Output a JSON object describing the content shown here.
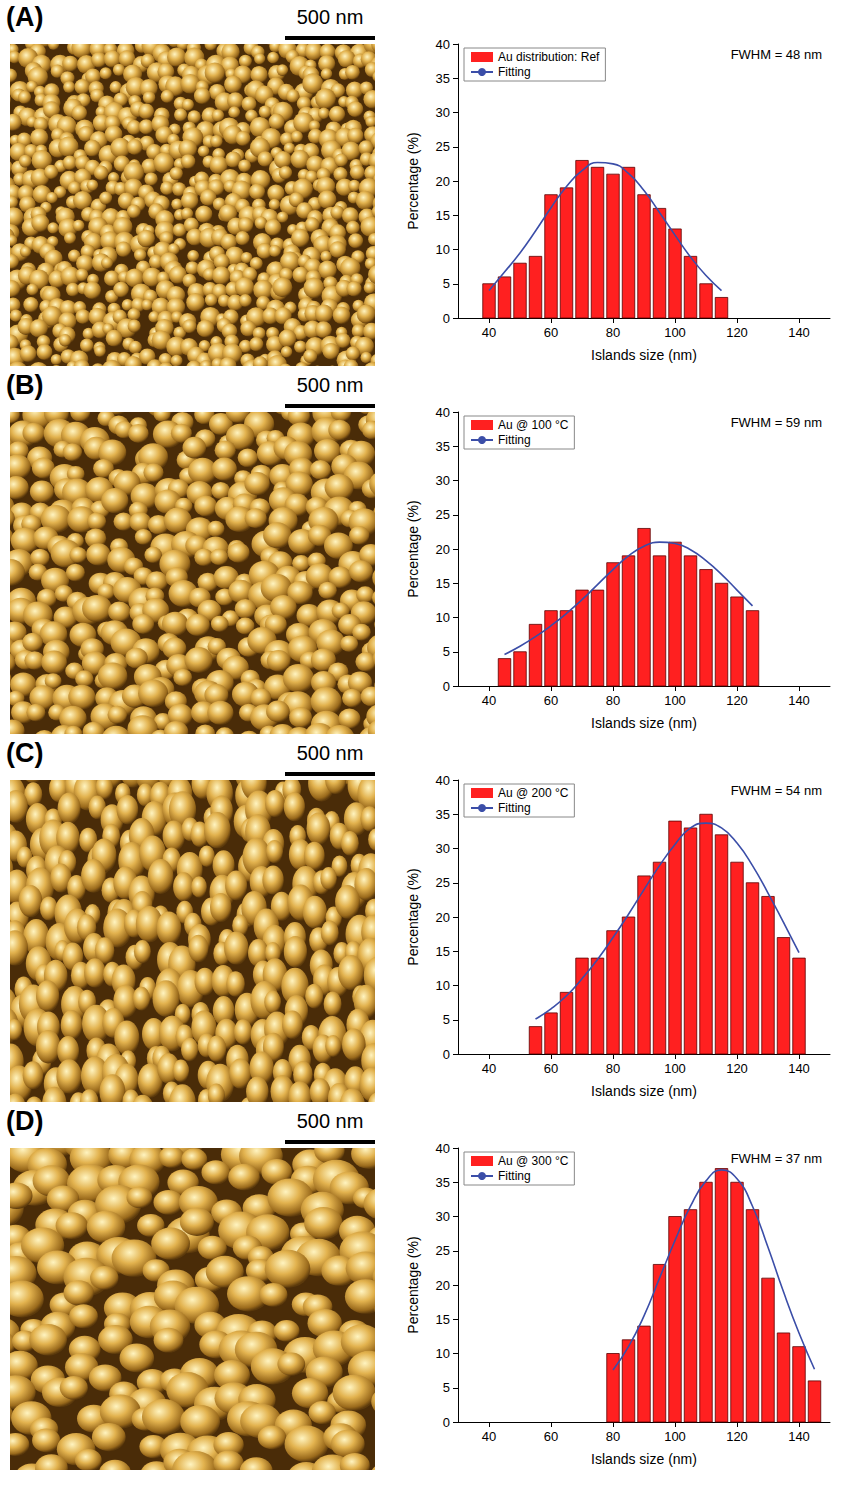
{
  "chart_data": [
    {
      "type": "histogram",
      "panel_label": "(A)",
      "scale_bar": "500 nm",
      "annotation": "FWHM = 48 nm",
      "x_label": "Islands size (nm)",
      "y_label": "Percentage (%)",
      "bins": [
        37.5,
        42.5,
        47.5,
        52.5,
        57.5,
        62.5,
        67.5,
        72.5,
        77.5,
        82.5,
        87.5,
        92.5,
        97.5,
        102.5,
        107.5,
        112.5,
        117.5
      ],
      "series": [
        {
          "name": "Au distribution: Ref",
          "type": "bar",
          "color": "#ff2020",
          "values": [
            5,
            6,
            8,
            9,
            18,
            19,
            23,
            22,
            21,
            22,
            18,
            16,
            13,
            9,
            5,
            3
          ]
        },
        {
          "name": "Fitting",
          "type": "line",
          "color": "#3b4ea8",
          "x": [
            40,
            45,
            50,
            55,
            60,
            65,
            70,
            75,
            80,
            85,
            90,
            95,
            100,
            105,
            110,
            115
          ],
          "values": [
            4.0,
            6.7,
            9.5,
            12.7,
            16.1,
            19.2,
            21.5,
            22.7,
            22.5,
            21.1,
            18.6,
            15.4,
            12.1,
            8.9,
            6.2,
            4.0
          ]
        }
      ],
      "xlim": [
        30,
        150
      ],
      "xticks": [
        40,
        60,
        80,
        100,
        120,
        140
      ],
      "ylim": [
        0,
        40
      ],
      "yticks": [
        0,
        5,
        10,
        15,
        20,
        25,
        30,
        35,
        40
      ],
      "legend": "upper left",
      "grid": false
    },
    {
      "type": "histogram",
      "panel_label": "(B)",
      "scale_bar": "500 nm",
      "annotation": "FWHM = 59 nm",
      "x_label": "Islands size (nm)",
      "y_label": "Percentage (%)",
      "bins": [
        42.5,
        47.5,
        52.5,
        57.5,
        62.5,
        67.5,
        72.5,
        77.5,
        82.5,
        87.5,
        92.5,
        97.5,
        102.5,
        107.5,
        112.5,
        117.5,
        122.5,
        127.5
      ],
      "series": [
        {
          "name": "Au @ 100 °C",
          "type": "bar",
          "color": "#ff2020",
          "values": [
            4,
            5,
            9,
            11,
            11,
            14,
            14,
            18,
            19,
            23,
            19,
            21,
            19,
            17,
            15,
            13,
            11
          ]
        },
        {
          "name": "Fitting",
          "type": "line",
          "color": "#3b4ea8",
          "x": [
            45,
            50,
            55,
            60,
            65,
            70,
            75,
            80,
            85,
            90,
            95,
            100,
            105,
            110,
            115,
            120,
            125
          ],
          "values": [
            4.6,
            5.8,
            7.2,
            8.8,
            10.6,
            12.6,
            14.8,
            17,
            19,
            20.4,
            21,
            20.8,
            19.9,
            18.3,
            16.3,
            14,
            11.7
          ]
        }
      ],
      "xlim": [
        30,
        150
      ],
      "xticks": [
        40,
        60,
        80,
        100,
        120,
        140
      ],
      "ylim": [
        0,
        40
      ],
      "yticks": [
        0,
        5,
        10,
        15,
        20,
        25,
        30,
        35,
        40
      ],
      "legend": "upper left",
      "grid": false
    },
    {
      "type": "histogram",
      "panel_label": "(C)",
      "scale_bar": "500 nm",
      "annotation": "FWHM = 54 nm",
      "x_label": "Islands size (nm)",
      "y_label": "Percentage (%)",
      "bins": [
        52.5,
        57.5,
        62.5,
        67.5,
        72.5,
        77.5,
        82.5,
        87.5,
        92.5,
        97.5,
        102.5,
        107.5,
        112.5,
        117.5,
        122.5,
        127.5,
        132.5,
        137.5,
        142.5
      ],
      "series": [
        {
          "name": "Au @ 200 °C",
          "type": "bar",
          "color": "#ff2020",
          "values": [
            4,
            6,
            9,
            14,
            14,
            18,
            20,
            26,
            28,
            34,
            33,
            35,
            32,
            28,
            25,
            23,
            17,
            14
          ]
        },
        {
          "name": "Fitting",
          "type": "line",
          "color": "#3b4ea8",
          "x": [
            55,
            60,
            65,
            70,
            75,
            80,
            85,
            90,
            95,
            100,
            105,
            110,
            115,
            120,
            125,
            130,
            135,
            140
          ],
          "values": [
            5.1,
            6.6,
            8.5,
            11,
            13.8,
            17,
            20.4,
            24,
            27.5,
            30.6,
            33,
            33.7,
            33,
            30.8,
            27.5,
            23.5,
            19.2,
            14.8
          ]
        }
      ],
      "xlim": [
        30,
        150
      ],
      "xticks": [
        40,
        60,
        80,
        100,
        120,
        140
      ],
      "ylim": [
        0,
        40
      ],
      "yticks": [
        0,
        5,
        10,
        15,
        20,
        25,
        30,
        35,
        40
      ],
      "legend": "upper left",
      "grid": false
    },
    {
      "type": "histogram",
      "panel_label": "(D)",
      "scale_bar": "500 nm",
      "annotation": "FWHM = 37 nm",
      "x_label": "Islands size (nm)",
      "y_label": "Percentage (%)",
      "bins": [
        77.5,
        82.5,
        87.5,
        92.5,
        97.5,
        102.5,
        107.5,
        112.5,
        117.5,
        122.5,
        127.5,
        132.5,
        137.5,
        142.5,
        147.5
      ],
      "series": [
        {
          "name": "Au @ 300 °C",
          "type": "bar",
          "color": "#ff2020",
          "values": [
            10,
            12,
            14,
            23,
            30,
            31,
            35,
            37,
            35,
            31,
            21,
            13,
            11,
            6
          ]
        },
        {
          "name": "Fitting",
          "type": "line",
          "color": "#3b4ea8",
          "x": [
            80,
            85,
            90,
            95,
            100,
            105,
            110,
            115,
            120,
            125,
            130,
            135,
            140,
            145
          ],
          "values": [
            7.6,
            11,
            15.5,
            21,
            26.5,
            31.5,
            35.2,
            36.8,
            35.5,
            31.5,
            25.5,
            19,
            13,
            7.7
          ]
        }
      ],
      "xlim": [
        30,
        150
      ],
      "xticks": [
        40,
        60,
        80,
        100,
        120,
        140
      ],
      "ylim": [
        0,
        40
      ],
      "yticks": [
        0,
        5,
        10,
        15,
        20,
        25,
        30,
        35,
        40
      ],
      "legend": "upper left",
      "grid": false
    }
  ]
}
